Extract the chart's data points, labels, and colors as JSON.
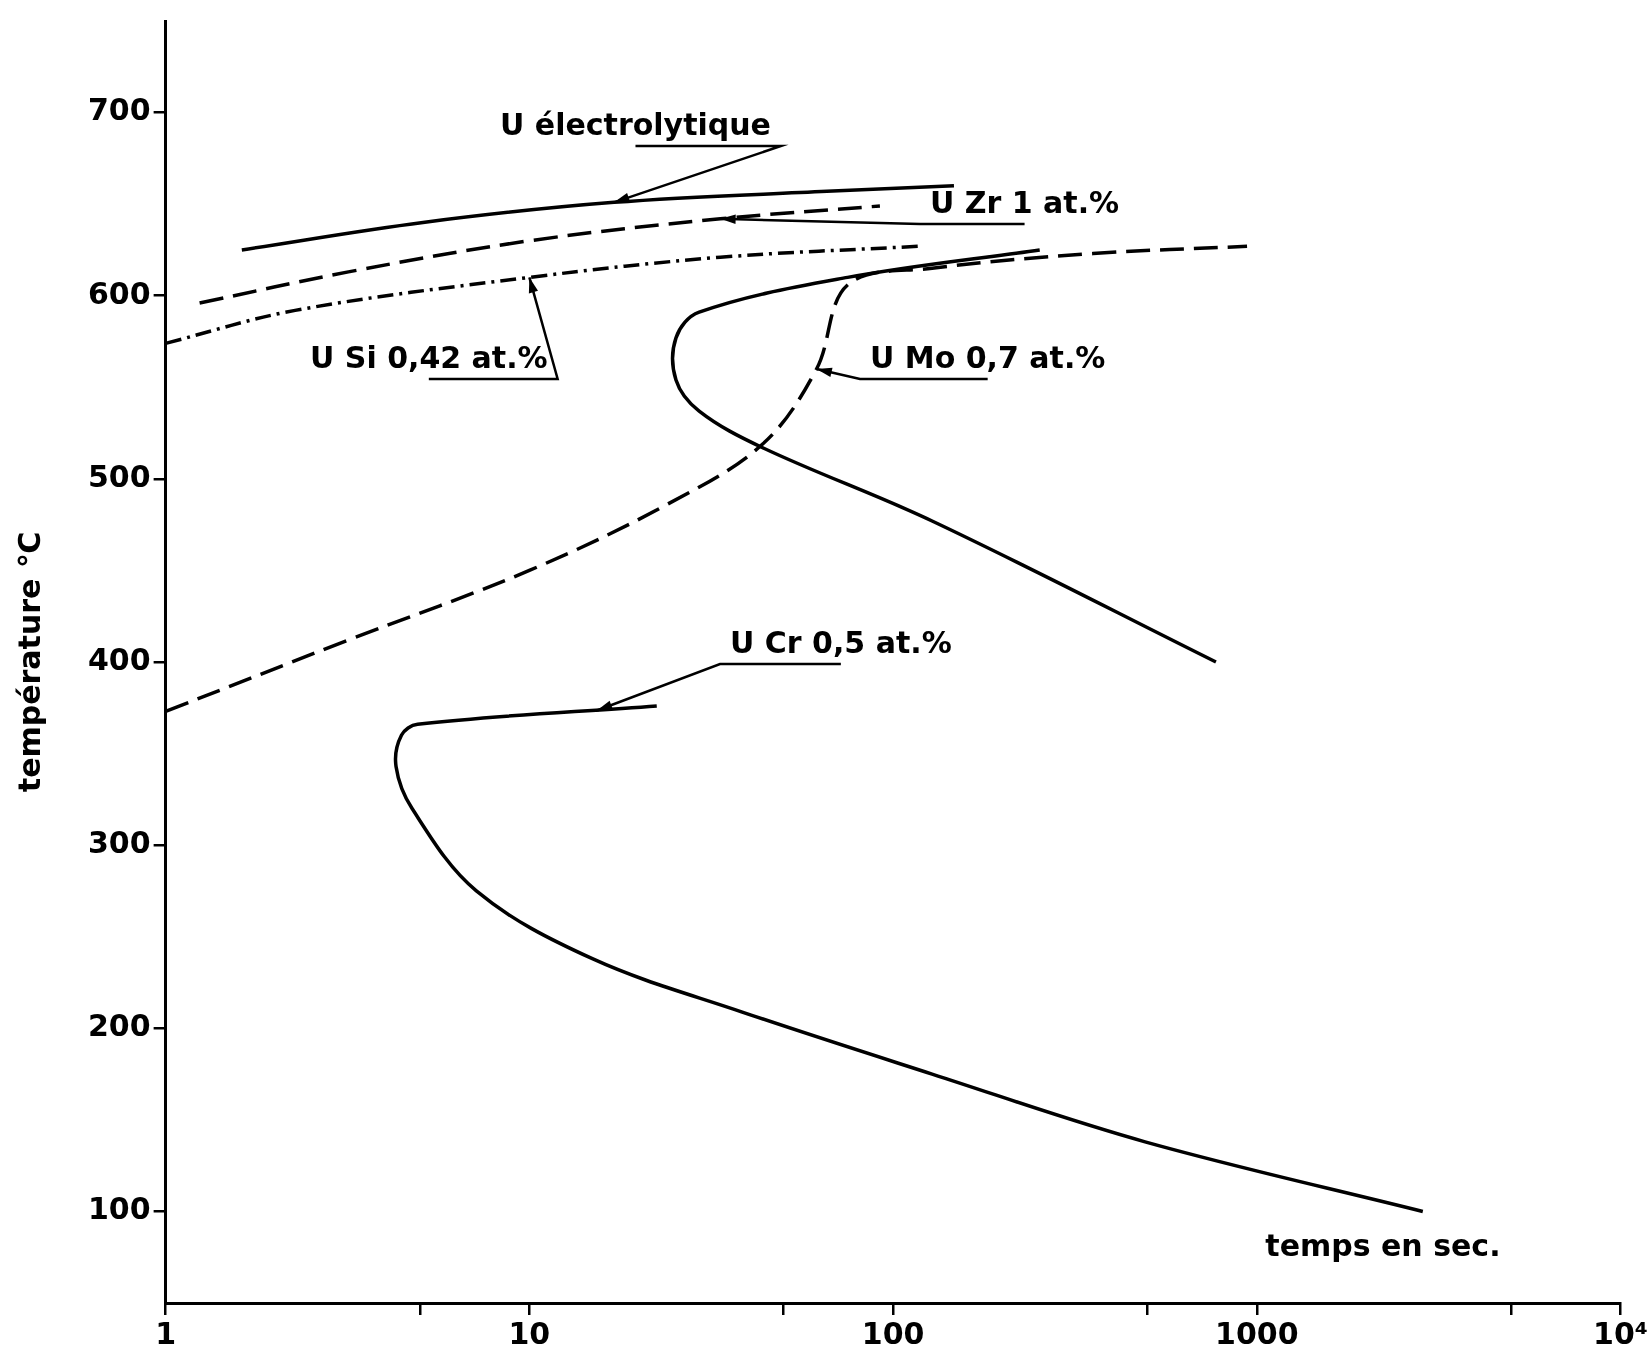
{
  "chart_data": {
    "type": "line",
    "xlabel": "temps en sec.",
    "ylabel": "température ℃",
    "log": "x",
    "grid": false,
    "marker": "none",
    "xlim": [
      1,
      10000
    ],
    "ylim": [
      50,
      750
    ],
    "xticks": [
      1,
      {
        "value": 5,
        "label": null
      },
      10,
      {
        "value": 50,
        "label": null
      },
      100,
      {
        "value": 500,
        "label": null
      },
      1000,
      {
        "value": 5000,
        "label": null
      },
      {
        "value": 10000,
        "label": "10⁴"
      }
    ],
    "yticks": [
      100,
      200,
      300,
      400,
      500,
      600,
      700
    ],
    "series": [
      {
        "name": "U électrolytique",
        "color": "#000000",
        "line_style": "solid",
        "x": [
          1.62,
          5.1,
          17.1,
          65.8,
          147
        ],
        "values": [
          625,
          640,
          651,
          657,
          660
        ]
      },
      {
        "name": "U Zr 1 at.%",
        "color": "#000000",
        "line_style": "dashed",
        "x": [
          1.24,
          3.18,
          10,
          33.5,
          92
        ],
        "values": [
          596,
          613,
          630,
          642,
          649
        ]
      },
      {
        "name": "U Si 0,42 at.%",
        "color": "#000000",
        "line_style": "dotted",
        "x": [
          1,
          2.27,
          10,
          33.5,
          117
        ],
        "values": [
          574,
          592,
          610,
          621,
          627
        ]
      },
      {
        "name": "U Mo 0,7 at.%",
        "color": "#000000",
        "line_style": "dashed",
        "x": [
          1,
          3.18,
          10,
          23.9,
          43.8,
          61.6,
          75.1,
          128,
          354,
          940
        ],
        "values": [
          373,
          412,
          450,
          486,
          519,
          560,
          606,
          615,
          623,
          627
        ]
      },
      {
        "name": "U Cr 0,5 at.%",
        "color": "#000000",
        "line_style": "solid",
        "x": [
          22.4,
          4.93,
          4.45,
          4.3,
          4.76,
          7.15,
          14.9,
          38.3,
          128,
          493,
          2860
        ],
        "values": [
          376,
          366,
          360,
          343,
          320,
          275,
          238,
          209,
          175,
          138,
          100
        ]
      },
      {
        "color": "#000000",
        "line_style": "solid",
        "x": [
          253,
          75,
          29.3,
          25.3,
          25.3,
          29.3,
          43.8,
          128,
          772
        ],
        "values": [
          625,
          610,
          591,
          577,
          554,
          537,
          517,
          477,
          400
        ]
      }
    ]
  }
}
